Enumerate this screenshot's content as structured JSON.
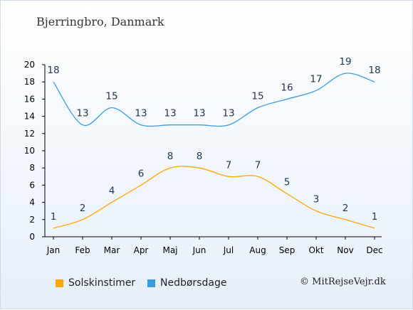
{
  "chart_data": {
    "type": "line",
    "title": "Bjerringbro, Danmark",
    "categories": [
      "Jan",
      "Feb",
      "Mar",
      "Apr",
      "Maj",
      "Jun",
      "Jul",
      "Aug",
      "Sep",
      "Okt",
      "Nov",
      "Dec"
    ],
    "series": [
      {
        "name": "Solskinstimer",
        "color": "#ffa500",
        "values": [
          1,
          2,
          4,
          6,
          8,
          8,
          7,
          7,
          5,
          3,
          2,
          1
        ]
      },
      {
        "name": "Nedbørsdage",
        "color": "#3a9ce0",
        "values": [
          18,
          13,
          15,
          13,
          13,
          13,
          13,
          15,
          16,
          17,
          19,
          18
        ]
      }
    ],
    "ylim": [
      0,
      20
    ],
    "yticks": [
      0,
      2,
      4,
      6,
      8,
      10,
      12,
      14,
      16,
      18,
      20
    ],
    "grid": false,
    "legend_position": "bottom-left"
  },
  "footer": {
    "credit": "© MitRejseVejr.dk"
  }
}
